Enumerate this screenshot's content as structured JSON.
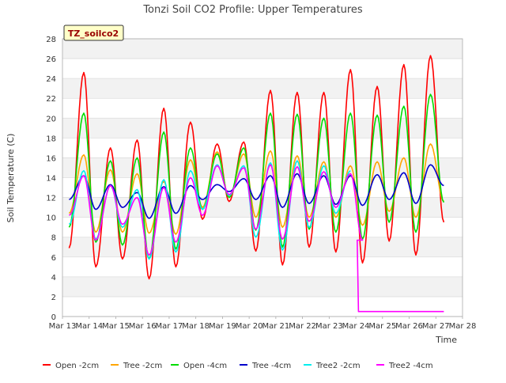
{
  "chart_data": {
    "type": "line",
    "title": "Tonzi Soil CO2 Profile: Upper Temperatures",
    "xlabel": "Time",
    "ylabel": "Soil Temperature (C)",
    "badge": "TZ_soilco2",
    "x_ticks": [
      "Mar 13",
      "Mar 14",
      "Mar 15",
      "Mar 16",
      "Mar 17",
      "Mar 18",
      "Mar 19",
      "Mar 20",
      "Mar 21",
      "Mar 22",
      "Mar 23",
      "Mar 24",
      "Mar 25",
      "Mar 26",
      "Mar 27",
      "Mar 28"
    ],
    "xlim": [
      13,
      28
    ],
    "ylim": [
      0,
      28
    ],
    "y_ticks": [
      0,
      2,
      4,
      6,
      8,
      10,
      12,
      14,
      16,
      18,
      20,
      22,
      24,
      26,
      28
    ],
    "grid": true,
    "legend_position": "bottom",
    "x_unit": "day of March",
    "daily_extremes_x": [
      13.25,
      13.8,
      14.25,
      14.8,
      15.25,
      15.8,
      16.25,
      16.8,
      17.25,
      17.8,
      18.25,
      18.8,
      19.25,
      19.8,
      20.25,
      20.8,
      21.25,
      21.8,
      22.25,
      22.8,
      23.25,
      23.8,
      24.25,
      24.8,
      25.25,
      25.8,
      26.25,
      26.8,
      27.3
    ],
    "series": [
      {
        "name": "Open -2cm",
        "color": "#ff0000",
        "start_x": 13.25,
        "values": [
          6.9,
          24.6,
          5.0,
          17.0,
          5.8,
          17.8,
          3.8,
          21.0,
          5.0,
          19.6,
          9.8,
          17.4,
          11.6,
          17.6,
          6.6,
          22.8,
          5.2,
          22.6,
          7.0,
          22.6,
          6.5,
          24.9,
          5.4,
          23.2,
          7.6,
          25.4,
          6.2,
          26.3,
          9.5
        ]
      },
      {
        "name": "Tree -2cm",
        "color": "#ffa500",
        "start_x": 13.25,
        "values": [
          10.4,
          16.3,
          8.5,
          14.8,
          8.5,
          14.4,
          8.4,
          13.6,
          8.3,
          15.8,
          11.0,
          16.6,
          12.0,
          16.4,
          10.0,
          16.7,
          9.0,
          16.2,
          10.0,
          15.6,
          10.0,
          15.2,
          9.2,
          15.6,
          10.6,
          16.0,
          10.0,
          17.4,
          11.6
        ]
      },
      {
        "name": "Open -4cm",
        "color": "#00dd00",
        "start_x": 13.25,
        "values": [
          9.0,
          20.5,
          7.5,
          15.7,
          7.2,
          16.0,
          5.8,
          18.6,
          6.8,
          17.0,
          10.8,
          16.4,
          12.0,
          17.0,
          8.7,
          20.5,
          7.0,
          20.4,
          8.8,
          20.0,
          8.5,
          20.5,
          7.8,
          20.3,
          9.5,
          21.2,
          8.5,
          22.4,
          11.5
        ]
      },
      {
        "name": "Tree -4cm",
        "color": "#0000cc",
        "start_x": 13.25,
        "values": [
          11.8,
          14.2,
          10.8,
          13.3,
          11.0,
          12.5,
          9.9,
          13.1,
          10.4,
          13.2,
          11.8,
          13.3,
          12.6,
          13.9,
          11.8,
          14.2,
          11.0,
          14.4,
          11.4,
          14.2,
          11.3,
          14.2,
          11.2,
          14.3,
          11.8,
          14.5,
          11.4,
          15.3,
          13.2
        ]
      },
      {
        "name": "Tree2 -2cm",
        "color": "#00eeee",
        "start_x": 13.25,
        "values": [
          9.3,
          14.7,
          7.8,
          13.2,
          9.0,
          12.8,
          5.8,
          13.8,
          6.5,
          14.7,
          10.8,
          15.3,
          12.2,
          15.2,
          8.0,
          15.5,
          6.7,
          15.7,
          9.0,
          15.2,
          10.4,
          14.7
        ]
      },
      {
        "name": "Tree2 -4cm",
        "color": "#ff00ff",
        "start_x": 13.25,
        "values": [
          10.2,
          14.2,
          7.7,
          13.2,
          9.3,
          12.0,
          6.2,
          13.0,
          7.5,
          14.0,
          10.2,
          15.2,
          12.3,
          15.0,
          8.8,
          15.3,
          7.8,
          15.1,
          9.6,
          14.6,
          11.0,
          14.4,
          7.7
        ],
        "tail": {
          "x": [
            24.05,
            24.1,
            27.3
          ],
          "values": [
            7.7,
            0.5,
            0.5
          ]
        }
      }
    ]
  }
}
